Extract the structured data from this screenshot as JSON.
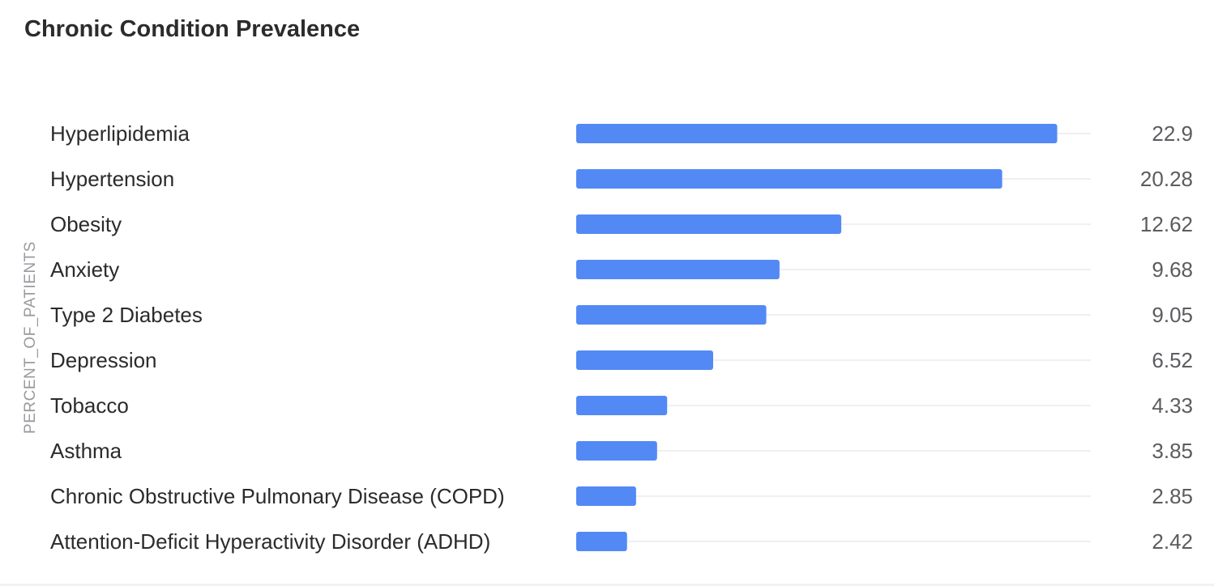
{
  "chart_data": {
    "type": "bar",
    "orientation": "horizontal",
    "title": "Chronic Condition Prevalence",
    "ylabel": "PERCENT_OF_PATIENTS",
    "xlabel": "",
    "xlim": [
      0,
      24.5
    ],
    "grid": true,
    "legend": "none",
    "categories": [
      "Hyperlipidemia",
      "Hypertension",
      "Obesity",
      "Anxiety",
      "Type 2 Diabetes",
      "Depression",
      "Tobacco",
      "Asthma",
      "Chronic Obstructive Pulmonary Disease (COPD)",
      "Attention-Deficit Hyperactivity Disorder (ADHD)"
    ],
    "values": [
      22.9,
      20.28,
      12.62,
      9.68,
      9.05,
      6.52,
      4.33,
      3.85,
      2.85,
      2.42
    ],
    "value_labels": [
      "22.9",
      "20.28",
      "12.62",
      "9.68",
      "9.05",
      "6.52",
      "4.33",
      "3.85",
      "2.85",
      "2.42"
    ],
    "colors": {
      "bar": "#5289f5",
      "grid": "#ebebee",
      "category_text": "#2b2b2b",
      "value_text": "#5c5c60"
    }
  }
}
